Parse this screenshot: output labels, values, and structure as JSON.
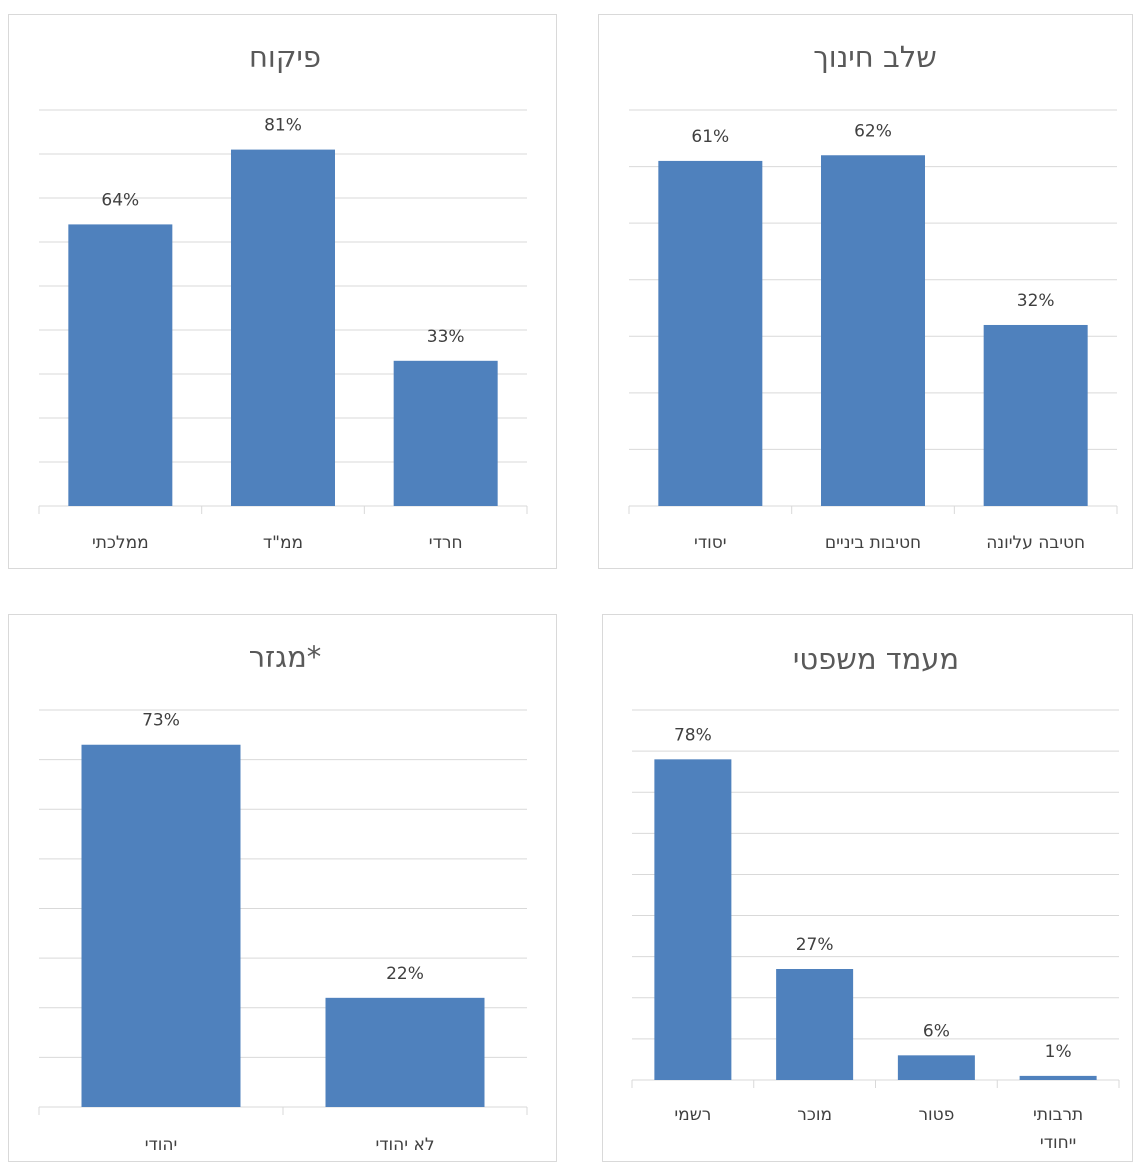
{
  "bar_color": "#4f81bd",
  "grid_color": "#d9d9d9",
  "chart_data": [
    {
      "type": "bar",
      "title": "פיקוח",
      "categories": [
        "ממלכתי",
        "ממ\"ד",
        "חרדי"
      ],
      "values": [
        64,
        81,
        33
      ],
      "labels": [
        "64%",
        "81%",
        "33%"
      ],
      "ylim": [
        0,
        90
      ],
      "gridlines": 9,
      "grid": true
    },
    {
      "type": "bar",
      "title": "שלב חינוך",
      "categories": [
        "יסודי",
        "חטיבות ביניים",
        "חטיבה עליונה"
      ],
      "values": [
        61,
        62,
        32
      ],
      "labels": [
        "61%",
        "62%",
        "32%"
      ],
      "ylim": [
        0,
        70
      ],
      "gridlines": 7,
      "grid": true
    },
    {
      "type": "bar",
      "title": "מגזר*",
      "categories": [
        "יהודי",
        "לא יהודי"
      ],
      "values": [
        73,
        22
      ],
      "labels": [
        "73%",
        "22%"
      ],
      "ylim": [
        0,
        80
      ],
      "gridlines": 8,
      "grid": true
    },
    {
      "type": "bar",
      "title": "מעמד משפטי",
      "categories": [
        [
          "רשמי"
        ],
        [
          "מוכר"
        ],
        [
          "פטור"
        ],
        [
          "תרבותי",
          "ייחודי"
        ]
      ],
      "values": [
        78,
        27,
        6,
        1
      ],
      "labels": [
        "78%",
        "27%",
        "6%",
        "1%"
      ],
      "ylim": [
        0,
        90
      ],
      "gridlines": 9,
      "grid": true
    }
  ]
}
